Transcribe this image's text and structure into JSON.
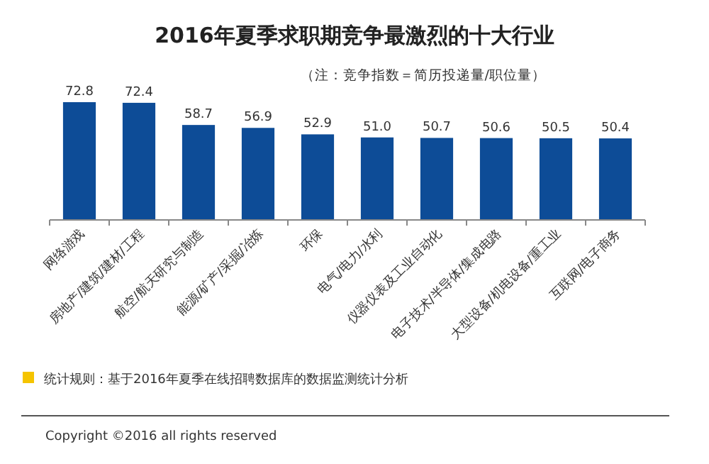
{
  "chart_data": {
    "type": "bar",
    "title": "2016年夏季求职期竞争最激烈的十大行业",
    "subtitle": "（注：竞争指数＝简历投递量/职位量）",
    "categories": [
      "网络游戏",
      "房地产/建筑/建材/工程",
      "航空/航天研究与制造",
      "能源/矿产/采掘/冶炼",
      "环保",
      "电气/电力/水利",
      "仪器仪表及工业自动化",
      "电子技术/半导体/集成电路",
      "大型设备/机电设备/重工业",
      "互联网/电子商务"
    ],
    "values": [
      72.8,
      72.4,
      58.7,
      56.9,
      52.9,
      51.0,
      50.7,
      50.6,
      50.5,
      50.4
    ],
    "color": "#0d4c97",
    "value_labels": [
      "72.8",
      "72.4",
      "58.7",
      "56.9",
      "52.9",
      "51.0",
      "50.7",
      "50.6",
      "50.5",
      "50.4"
    ],
    "annotations": [
      "统计规则：基于2016年夏季在线招聘数据库的数据监测统计分析",
      "Copyright ©2016 all rights reserved"
    ]
  }
}
